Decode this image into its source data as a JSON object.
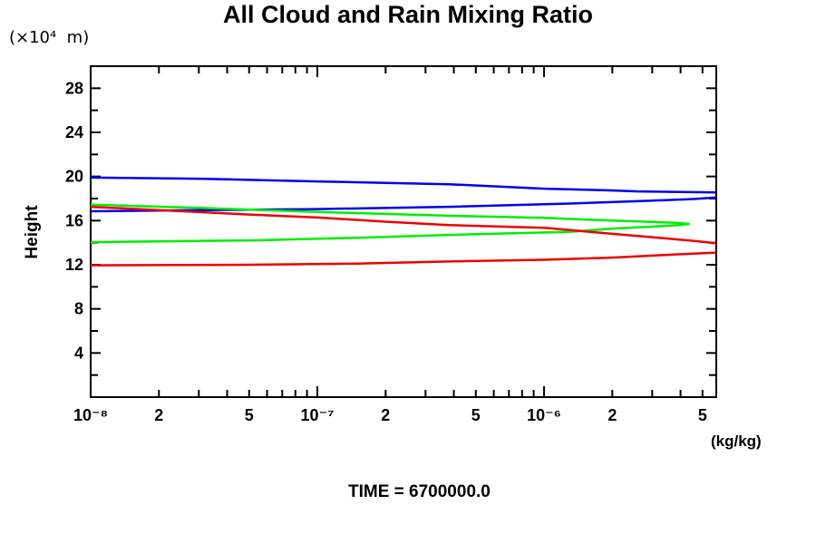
{
  "chart_data": {
    "type": "line",
    "title": "All Cloud and Rain Mixing Ratio",
    "footer": "TIME = 6700000.0",
    "grid": false,
    "legend": "none",
    "x_axis": {
      "scale": "log",
      "min": 1e-08,
      "max": 5.75e-06,
      "unit_label": "(kg/kg)",
      "tick_labels": [
        {
          "v": 1e-08,
          "label": "10⁻⁸"
        },
        {
          "v": 2e-08,
          "label": "2"
        },
        {
          "v": 5e-08,
          "label": "5"
        },
        {
          "v": 1e-07,
          "label": "10⁻⁷"
        },
        {
          "v": 2e-07,
          "label": "2"
        },
        {
          "v": 5e-07,
          "label": "5"
        },
        {
          "v": 1e-06,
          "label": "10⁻⁶"
        },
        {
          "v": 2e-06,
          "label": "2"
        },
        {
          "v": 5e-06,
          "label": "5"
        }
      ]
    },
    "y_axis": {
      "scale": "linear",
      "min": 0,
      "max": 30,
      "label": "Height",
      "unit_label": "(×10⁴  m)",
      "minor_step": 2,
      "tick_labels": [
        {
          "v": 4,
          "label": "4"
        },
        {
          "v": 8,
          "label": "8"
        },
        {
          "v": 12,
          "label": "12"
        },
        {
          "v": 16,
          "label": "16"
        },
        {
          "v": 20,
          "label": "20"
        },
        {
          "v": 24,
          "label": "24"
        },
        {
          "v": 28,
          "label": "28"
        }
      ]
    },
    "series": [
      {
        "name": "blue",
        "color": "#0000ee",
        "points": [
          [
            1e-08,
            19.9
          ],
          [
            3e-08,
            19.8
          ],
          [
            1e-07,
            19.55
          ],
          [
            3.8e-07,
            19.3
          ],
          [
            1e-06,
            18.9
          ],
          [
            1.9e-06,
            18.75
          ],
          [
            2.6e-06,
            18.65
          ],
          [
            4e-06,
            18.6
          ],
          [
            5.75e-06,
            18.55
          ],
          [
            8e-06,
            18.33
          ],
          [
            5.75e-06,
            18.1
          ],
          [
            4.5e-06,
            17.95
          ],
          [
            2.5e-06,
            17.75
          ],
          [
            1.3e-06,
            17.55
          ],
          [
            3.8e-07,
            17.25
          ],
          [
            1e-07,
            17.05
          ],
          [
            3e-08,
            16.95
          ],
          [
            1e-08,
            16.85
          ]
        ]
      },
      {
        "name": "green",
        "color": "#00ee00",
        "points": [
          [
            1e-08,
            17.45
          ],
          [
            3e-08,
            17.15
          ],
          [
            1e-07,
            16.78
          ],
          [
            2.5e-07,
            16.55
          ],
          [
            3.8e-07,
            16.45
          ],
          [
            1e-06,
            16.25
          ],
          [
            2e-06,
            16.0
          ],
          [
            3e-06,
            15.88
          ],
          [
            4e-06,
            15.78
          ],
          [
            4.35e-06,
            15.7
          ],
          [
            4e-06,
            15.6
          ],
          [
            3e-06,
            15.45
          ],
          [
            2e-06,
            15.28
          ],
          [
            1.3e-06,
            14.98
          ],
          [
            6e-07,
            14.82
          ],
          [
            3.8e-07,
            14.7
          ],
          [
            1.5e-07,
            14.45
          ],
          [
            5e-08,
            14.2
          ],
          [
            1e-08,
            14.05
          ]
        ]
      },
      {
        "name": "red",
        "color": "#ee0000",
        "points": [
          [
            1e-08,
            17.25
          ],
          [
            2e-08,
            16.95
          ],
          [
            5e-08,
            16.55
          ],
          [
            1e-07,
            16.28
          ],
          [
            2e-07,
            15.9
          ],
          [
            3.8e-07,
            15.6
          ],
          [
            1e-06,
            15.35
          ],
          [
            2e-06,
            14.8
          ],
          [
            3e-06,
            14.5
          ],
          [
            4.5e-06,
            14.18
          ],
          [
            5.75e-06,
            13.95
          ],
          [
            8.5e-06,
            13.5
          ],
          [
            5.75e-06,
            13.1
          ],
          [
            4e-06,
            12.95
          ],
          [
            2e-06,
            12.65
          ],
          [
            1e-06,
            12.45
          ],
          [
            3.8e-07,
            12.3
          ],
          [
            1.5e-07,
            12.1
          ],
          [
            5e-08,
            12.0
          ],
          [
            1e-08,
            11.95
          ]
        ]
      }
    ]
  }
}
